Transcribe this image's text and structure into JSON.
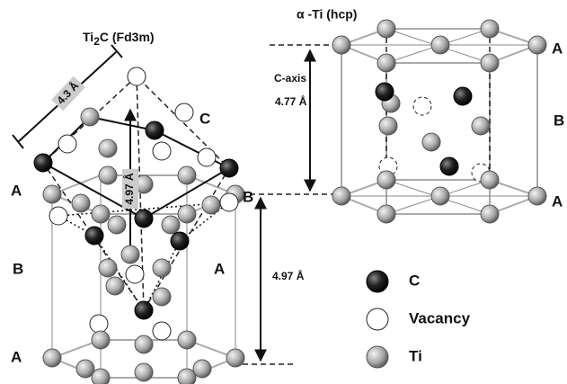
{
  "left": {
    "title": {
      "main": "Ti",
      "sub": "2",
      "rest": "C (Fd3m)"
    },
    "diagonal_label": "4.3 Å",
    "vertical_label": "4.97 Å",
    "layer_labels": [
      "A",
      "B",
      "A"
    ],
    "inner_labels": [
      "C",
      "B",
      "A"
    ],
    "spacing_label": "4.97 Å"
  },
  "right": {
    "title": "α -Ti (hcp)",
    "axis_label": "C-axis",
    "axis_value": "4.77 Å",
    "layer_labels": [
      "A",
      "B",
      "A"
    ]
  },
  "legend": [
    {
      "label": "C"
    },
    {
      "label": "Vacancy"
    },
    {
      "label": "Ti"
    }
  ]
}
